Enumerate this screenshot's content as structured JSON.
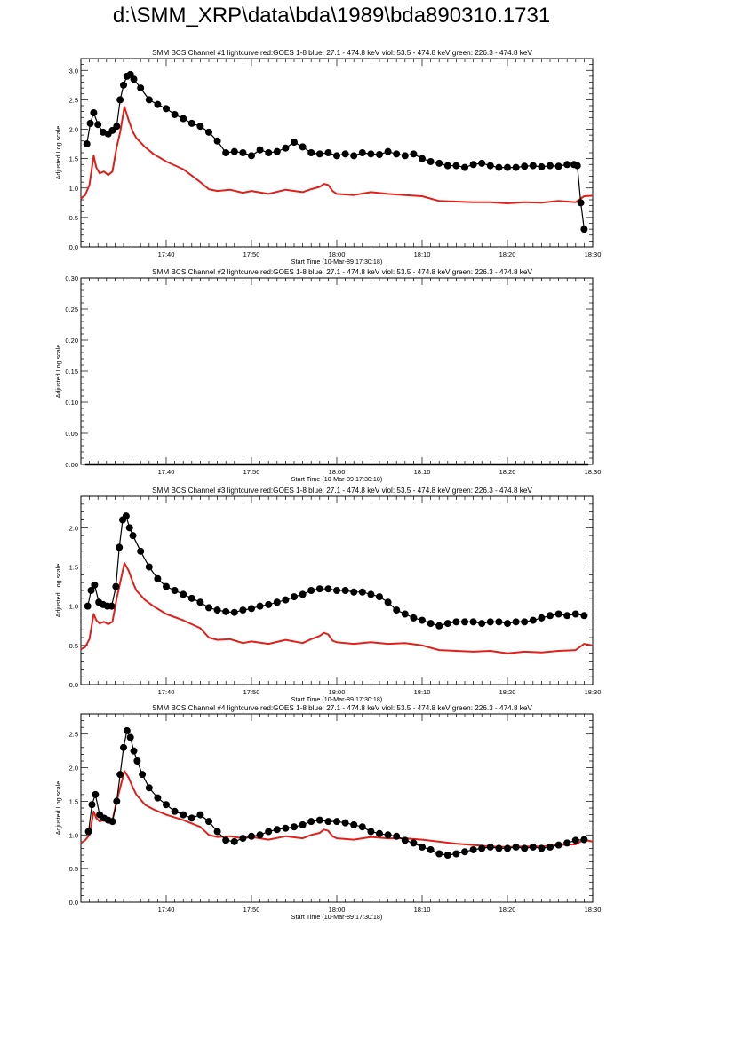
{
  "page": {
    "title": "d:\\SMM_XRP\\data\\bda\\1989\\bda890310.1731"
  },
  "colors": {
    "red": "#e0201b",
    "black": "#000000",
    "axis": "#000000"
  },
  "chart_data": [
    {
      "type": "line",
      "title": "SMM BCS Channel #1 lightcurve  red:GOES 1-8  blue: 27.1 - 474.8 keV  viol: 53.5 - 474.8 keV  green: 226.3 - 474.8 keV",
      "xlabel": "Start Time (10-Mar-89 17:30:18)",
      "ylabel": "Adjusted Log scale",
      "xlim": [
        0,
        60
      ],
      "ylim": [
        0,
        3.2
      ],
      "xticks": [
        10,
        20,
        30,
        40,
        50,
        60
      ],
      "xtick_labels": [
        "17:40",
        "17:50",
        "18:00",
        "18:10",
        "18:20",
        "18:30"
      ],
      "yticks": [
        0,
        0.5,
        1.0,
        1.5,
        2.0,
        2.5,
        3.0
      ],
      "ytick_labels": [
        "0.0",
        "0.5",
        "1.0",
        "1.5",
        "2.0",
        "2.5",
        "3.0"
      ],
      "series": [
        {
          "color": "red",
          "style": "line",
          "x": [
            0,
            0.5,
            1,
            1.5,
            1.8,
            2.2,
            2.7,
            3.2,
            3.7,
            4.2,
            4.6,
            5.1,
            5.6,
            6.1,
            6.5,
            7.5,
            8.5,
            10,
            12,
            14,
            15,
            16,
            17.5,
            19,
            20,
            22,
            24,
            26,
            27,
            28,
            28.5,
            29,
            29.5,
            30,
            32,
            34,
            36,
            38,
            40,
            42,
            44,
            46,
            48,
            50,
            52,
            54,
            56,
            58,
            59,
            60
          ],
          "y": [
            0.82,
            0.88,
            1.05,
            1.55,
            1.35,
            1.25,
            1.28,
            1.22,
            1.28,
            1.7,
            1.95,
            2.38,
            2.15,
            1.95,
            1.85,
            1.7,
            1.58,
            1.45,
            1.32,
            1.1,
            0.98,
            0.95,
            0.97,
            0.92,
            0.95,
            0.9,
            0.97,
            0.93,
            0.98,
            1.02,
            1.07,
            1.05,
            0.95,
            0.9,
            0.88,
            0.93,
            0.9,
            0.88,
            0.86,
            0.78,
            0.77,
            0.76,
            0.76,
            0.74,
            0.76,
            0.75,
            0.78,
            0.76,
            0.86,
            0.87
          ]
        },
        {
          "color": "black",
          "style": "dots",
          "x": [
            0.7,
            1.1,
            1.5,
            2.0,
            2.6,
            3.2,
            3.7,
            4.2,
            4.6,
            5.0,
            5.4,
            5.8,
            6.2,
            7,
            8,
            9,
            10,
            11,
            12,
            13,
            14,
            15,
            16,
            17,
            18,
            19,
            20,
            21,
            22,
            23,
            24,
            25,
            26,
            27,
            28,
            29,
            30,
            31,
            32,
            33,
            34,
            35,
            36,
            37,
            38,
            39,
            40,
            41,
            42,
            43,
            44,
            45,
            46,
            47,
            48,
            49,
            50,
            51,
            52,
            53,
            54,
            55,
            56,
            57,
            57.8,
            58.2,
            58.6,
            59.0
          ],
          "y": [
            1.75,
            2.1,
            2.28,
            2.08,
            1.95,
            1.92,
            1.98,
            2.05,
            2.5,
            2.75,
            2.9,
            2.93,
            2.85,
            2.7,
            2.5,
            2.42,
            2.35,
            2.25,
            2.18,
            2.1,
            2.05,
            1.95,
            1.8,
            1.6,
            1.62,
            1.6,
            1.55,
            1.65,
            1.6,
            1.62,
            1.68,
            1.78,
            1.7,
            1.6,
            1.58,
            1.6,
            1.55,
            1.58,
            1.55,
            1.6,
            1.58,
            1.57,
            1.62,
            1.58,
            1.55,
            1.58,
            1.5,
            1.45,
            1.42,
            1.38,
            1.38,
            1.35,
            1.4,
            1.42,
            1.38,
            1.35,
            1.35,
            1.35,
            1.37,
            1.38,
            1.36,
            1.38,
            1.37,
            1.4,
            1.4,
            1.38,
            0.75,
            0.3
          ]
        }
      ]
    },
    {
      "type": "line",
      "title": "SMM BCS Channel #2 lightcurve  red:GOES 1-8  blue: 27.1 - 474.8 keV  viol: 53.5 - 474.8 keV  green: 226.3 - 474.8 keV",
      "xlabel": "Start Time (10-Mar-89 17:30:18)",
      "ylabel": "Adjusted Log scale",
      "xlim": [
        0,
        60
      ],
      "ylim": [
        0,
        0.3
      ],
      "xticks": [
        10,
        20,
        30,
        40,
        50,
        60
      ],
      "xtick_labels": [
        "17:40",
        "17:50",
        "18:00",
        "18:10",
        "18:20",
        "18:30"
      ],
      "yticks": [
        0,
        0.05,
        0.1,
        0.15,
        0.2,
        0.25,
        0.3
      ],
      "ytick_labels": [
        "0.00",
        "0.05",
        "0.10",
        "0.15",
        "0.20",
        "0.25",
        "0.30"
      ],
      "series": [
        {
          "color": "black",
          "style": "line",
          "x": [
            0.5,
            59.5
          ],
          "y": [
            0,
            0
          ]
        }
      ]
    },
    {
      "type": "line",
      "title": "SMM BCS Channel #3 lightcurve  red:GOES 1-8  blue: 27.1 - 474.8 keV  viol: 53.5 - 474.8 keV  green: 226.3 - 474.8 keV",
      "xlabel": "Start Time (10-Mar-89 17:30:18)",
      "ylabel": "Adjusted Log scale",
      "xlim": [
        0,
        60
      ],
      "ylim": [
        0,
        2.4
      ],
      "xticks": [
        10,
        20,
        30,
        40,
        50,
        60
      ],
      "xtick_labels": [
        "17:40",
        "17:50",
        "18:00",
        "18:10",
        "18:20",
        "18:30"
      ],
      "yticks": [
        0,
        0.5,
        1.0,
        1.5,
        2.0
      ],
      "ytick_labels": [
        "0.0",
        "0.5",
        "1.0",
        "1.5",
        "2.0"
      ],
      "series": [
        {
          "color": "red",
          "style": "line",
          "x": [
            0,
            0.5,
            1,
            1.5,
            1.8,
            2.2,
            2.7,
            3.2,
            3.7,
            4.2,
            4.6,
            5.1,
            5.6,
            6.1,
            6.5,
            7.5,
            8.5,
            10,
            12,
            14,
            15,
            16,
            17.5,
            19,
            20,
            22,
            24,
            26,
            27,
            28,
            28.5,
            29,
            29.5,
            30,
            32,
            34,
            36,
            38,
            40,
            42,
            44,
            46,
            48,
            50,
            52,
            54,
            56,
            58,
            59,
            60
          ],
          "y": [
            0.45,
            0.48,
            0.58,
            0.9,
            0.82,
            0.78,
            0.8,
            0.77,
            0.8,
            1.1,
            1.3,
            1.55,
            1.45,
            1.3,
            1.2,
            1.08,
            1.0,
            0.9,
            0.82,
            0.72,
            0.6,
            0.57,
            0.58,
            0.53,
            0.55,
            0.52,
            0.57,
            0.53,
            0.58,
            0.62,
            0.66,
            0.64,
            0.56,
            0.54,
            0.52,
            0.54,
            0.52,
            0.53,
            0.5,
            0.44,
            0.43,
            0.42,
            0.43,
            0.4,
            0.42,
            0.41,
            0.43,
            0.44,
            0.52,
            0.5
          ]
        },
        {
          "color": "black",
          "style": "dots",
          "x": [
            0.8,
            1.2,
            1.6,
            2.1,
            2.6,
            3.1,
            3.6,
            4.1,
            4.5,
            4.9,
            5.3,
            5.7,
            6.1,
            7,
            8,
            9,
            10,
            11,
            12,
            13,
            14,
            15,
            16,
            17,
            18,
            19,
            20,
            21,
            22,
            23,
            24,
            25,
            26,
            27,
            28,
            29,
            30,
            31,
            32,
            33,
            34,
            35,
            36,
            37,
            38,
            39,
            40,
            41,
            42,
            43,
            44,
            45,
            46,
            47,
            48,
            49,
            50,
            51,
            52,
            53,
            54,
            55,
            56,
            57,
            58,
            59
          ],
          "y": [
            1.0,
            1.2,
            1.27,
            1.05,
            1.02,
            1.0,
            1.0,
            1.25,
            1.75,
            2.1,
            2.15,
            2.0,
            1.9,
            1.7,
            1.5,
            1.35,
            1.25,
            1.2,
            1.15,
            1.1,
            1.05,
            0.98,
            0.95,
            0.93,
            0.92,
            0.95,
            0.97,
            1.0,
            1.02,
            1.05,
            1.08,
            1.12,
            1.15,
            1.2,
            1.22,
            1.22,
            1.2,
            1.2,
            1.18,
            1.18,
            1.15,
            1.12,
            1.05,
            0.95,
            0.9,
            0.85,
            0.82,
            0.78,
            0.75,
            0.78,
            0.8,
            0.8,
            0.8,
            0.78,
            0.8,
            0.8,
            0.78,
            0.8,
            0.8,
            0.82,
            0.85,
            0.88,
            0.9,
            0.88,
            0.9,
            0.88
          ]
        }
      ]
    },
    {
      "type": "line",
      "title": "SMM BCS Channel #4 lightcurve  red:GOES 1-8  blue: 27.1 - 474.8 keV  viol: 53.5 - 474.8 keV  green: 226.3 - 474.8 keV",
      "xlabel": "Start Time (10-Mar-89 17:30:18)",
      "ylabel": "Adjusted Log scale",
      "xlim": [
        0,
        60
      ],
      "ylim": [
        0,
        2.8
      ],
      "xticks": [
        10,
        20,
        30,
        40,
        50,
        60
      ],
      "xtick_labels": [
        "17:40",
        "17:50",
        "18:00",
        "18:10",
        "18:20",
        "18:30"
      ],
      "yticks": [
        0,
        0.5,
        1.0,
        1.5,
        2.0,
        2.5
      ],
      "ytick_labels": [
        "0.0",
        "0.5",
        "1.0",
        "1.5",
        "2.0",
        "2.5"
      ],
      "series": [
        {
          "color": "red",
          "style": "line",
          "x": [
            0,
            0.5,
            1,
            1.5,
            1.8,
            2.2,
            2.7,
            3.2,
            3.7,
            4.2,
            4.6,
            5.1,
            5.6,
            6.1,
            6.5,
            7.5,
            8.5,
            10,
            12,
            14,
            15,
            16,
            17.5,
            19,
            20,
            22,
            24,
            26,
            27,
            28,
            28.5,
            29,
            29.5,
            30,
            32,
            34,
            36,
            38,
            40,
            42,
            44,
            46,
            48,
            50,
            52,
            54,
            56,
            58,
            59,
            60
          ],
          "y": [
            0.88,
            0.92,
            1.0,
            1.35,
            1.25,
            1.2,
            1.22,
            1.18,
            1.22,
            1.5,
            1.7,
            1.95,
            1.85,
            1.7,
            1.6,
            1.45,
            1.38,
            1.3,
            1.22,
            1.12,
            1.0,
            0.97,
            0.98,
            0.95,
            0.97,
            0.93,
            0.98,
            0.95,
            1.0,
            1.03,
            1.08,
            1.06,
            0.98,
            0.95,
            0.93,
            0.97,
            0.95,
            0.95,
            0.93,
            0.9,
            0.87,
            0.85,
            0.83,
            0.82,
            0.83,
            0.83,
            0.85,
            0.86,
            0.93,
            0.9
          ]
        },
        {
          "color": "black",
          "style": "dots",
          "x": [
            0.9,
            1.3,
            1.7,
            2.2,
            2.7,
            3.2,
            3.7,
            4.2,
            4.6,
            5.0,
            5.4,
            5.8,
            6.2,
            6.6,
            7.2,
            8,
            9,
            10,
            11,
            12,
            13,
            14,
            15,
            16,
            17,
            18,
            19,
            20,
            21,
            22,
            23,
            24,
            25,
            26,
            27,
            28,
            29,
            30,
            31,
            32,
            33,
            34,
            35,
            36,
            37,
            38,
            39,
            40,
            41,
            42,
            43,
            44,
            45,
            46,
            47,
            48,
            49,
            50,
            51,
            52,
            53,
            54,
            55,
            56,
            57,
            58,
            59
          ],
          "y": [
            1.05,
            1.45,
            1.6,
            1.3,
            1.25,
            1.22,
            1.2,
            1.5,
            1.9,
            2.3,
            2.55,
            2.45,
            2.25,
            2.1,
            1.9,
            1.7,
            1.55,
            1.45,
            1.35,
            1.3,
            1.25,
            1.3,
            1.2,
            1.05,
            0.92,
            0.9,
            0.95,
            0.98,
            1.0,
            1.05,
            1.08,
            1.1,
            1.12,
            1.15,
            1.2,
            1.22,
            1.2,
            1.2,
            1.18,
            1.15,
            1.12,
            1.05,
            1.02,
            1.0,
            0.98,
            0.92,
            0.88,
            0.82,
            0.78,
            0.72,
            0.7,
            0.72,
            0.75,
            0.78,
            0.8,
            0.82,
            0.8,
            0.8,
            0.82,
            0.8,
            0.82,
            0.8,
            0.82,
            0.85,
            0.88,
            0.92,
            0.93
          ]
        }
      ]
    }
  ]
}
